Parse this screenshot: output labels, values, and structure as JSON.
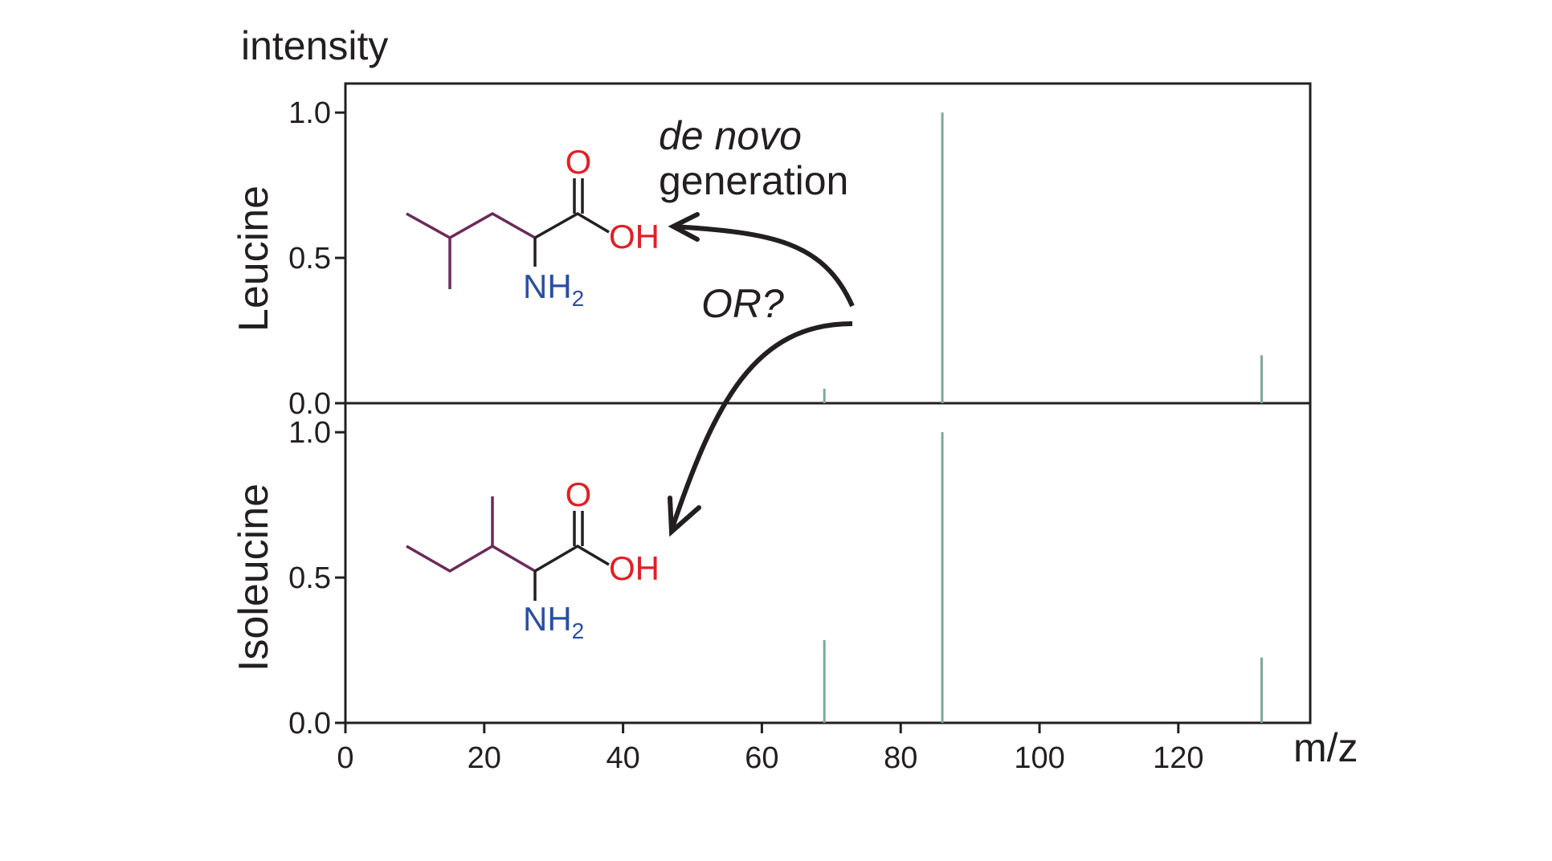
{
  "chart_data": {
    "type": "bar",
    "ylabel": "intensity",
    "xlabel": "m/z",
    "xlim": [
      0,
      139
    ],
    "ylim": [
      0,
      1.1
    ],
    "x_ticks": [
      "0",
      "20",
      "40",
      "60",
      "80",
      "100",
      "120"
    ],
    "y_ticks": [
      "0.0",
      "0.5",
      "1.0"
    ],
    "series_color": "#7fa89a",
    "panels": [
      {
        "label": "Leucine",
        "peaks": [
          {
            "x": 69,
            "y": 0.05
          },
          {
            "x": 86,
            "y": 1.0
          },
          {
            "x": 132,
            "y": 0.165
          }
        ]
      },
      {
        "label": "Isoleucine",
        "peaks": [
          {
            "x": 69,
            "y": 0.285
          },
          {
            "x": 86,
            "y": 1.0
          },
          {
            "x": 132,
            "y": 0.225
          }
        ]
      }
    ],
    "annotations": {
      "de_novo": "de novo",
      "generation": "generation",
      "or": "OR?"
    }
  },
  "molecule": {
    "oxygen": "O",
    "hydroxyl": "OH",
    "amine": "NH",
    "amine_sub": "2",
    "side_chain_color": "#6b2a5a",
    "heteroatom_red": "#e31e24",
    "heteroatom_blue": "#2b4ea2"
  }
}
